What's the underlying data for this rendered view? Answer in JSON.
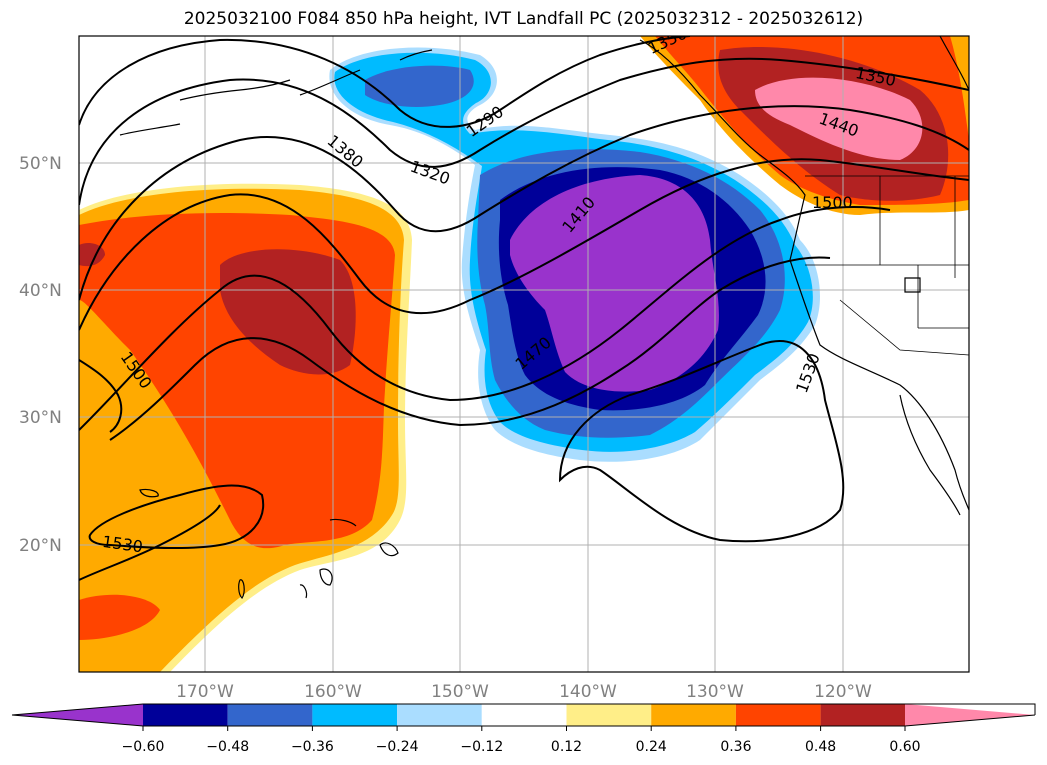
{
  "title": "2025032100 F084 850 hPa height, IVT Landfall PC (2025032312 - 2025032612)",
  "map": {
    "lat_ticks": [
      "50°N",
      "40°N",
      "30°N",
      "20°N"
    ],
    "lon_ticks": [
      "170°W",
      "160°W",
      "150°W",
      "140°W",
      "130°W",
      "120°W"
    ],
    "contour_labels": [
      "1290",
      "1320",
      "1350",
      "1350",
      "1380",
      "1410",
      "1440",
      "1470",
      "1500",
      "1500",
      "1530",
      "1530"
    ]
  },
  "colorbar": {
    "tick_labels": [
      "−0.60",
      "−0.48",
      "−0.36",
      "−0.24",
      "−0.12",
      "0.12",
      "0.24",
      "0.36",
      "0.48",
      "0.60"
    ],
    "colors": [
      "#9933cc",
      "#000099",
      "#3366cc",
      "#00bbff",
      "#aaddff",
      "#ffffff",
      "#ffee88",
      "#ffaa00",
      "#ff4400",
      "#b22222",
      "#ff88aa"
    ]
  }
}
